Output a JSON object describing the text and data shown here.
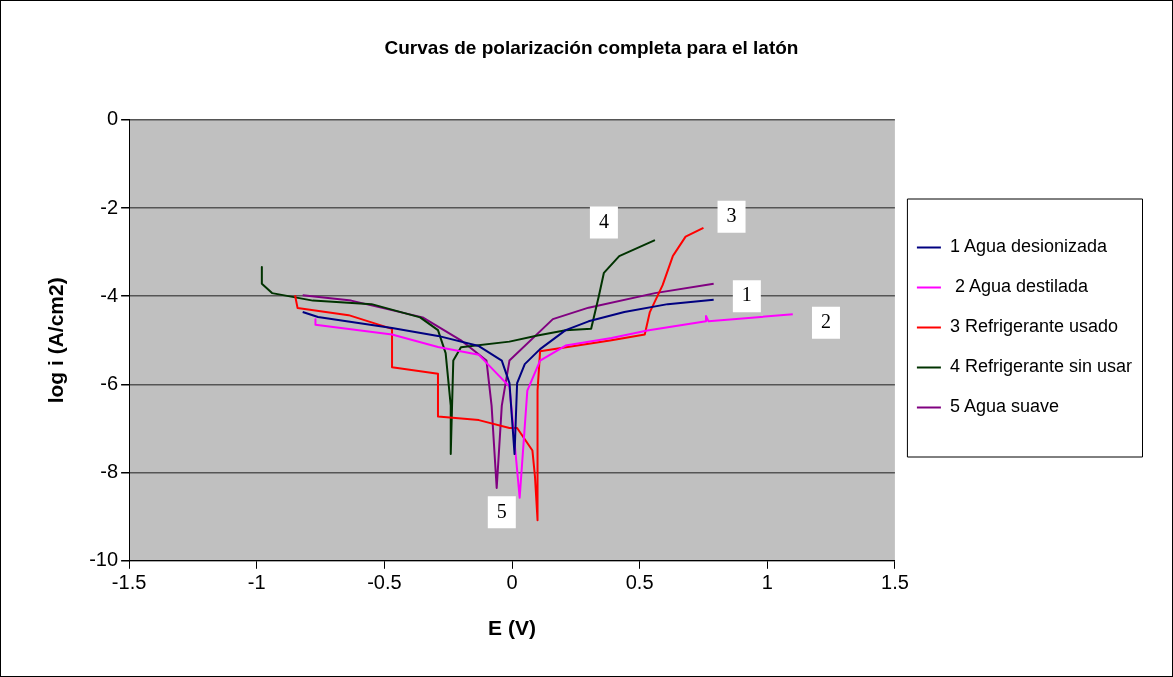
{
  "chart_data": {
    "type": "line",
    "title": "Curvas de polarización completa para el latón",
    "xlabel": "E (V)",
    "ylabel": "log i (A/cm2)",
    "xlim": [
      -1.5,
      1.5
    ],
    "xticks": [
      -1.5,
      -1,
      -0.5,
      0,
      0.5,
      1,
      1.5
    ],
    "ylim": [
      -10,
      0
    ],
    "yticks": [
      -10,
      -8,
      -6,
      -4,
      -2,
      0
    ],
    "grid": "y",
    "legend": "right",
    "marker": "none",
    "line_style": "solid",
    "series": [
      {
        "name": "1 Agua desionizada",
        "color": "#000080",
        "x": [
          -0.82,
          -0.76,
          -0.47,
          -0.29,
          -0.13,
          -0.04,
          -0.01,
          0.01,
          0.02,
          0.05,
          0.11,
          0.21,
          0.3,
          0.44,
          0.61,
          0.79
        ],
        "values": [
          -4.36,
          -4.47,
          -4.72,
          -4.9,
          -5.13,
          -5.46,
          -5.97,
          -7.58,
          -5.97,
          -5.54,
          -5.2,
          -4.77,
          -4.57,
          -4.36,
          -4.18,
          -4.08
        ]
      },
      {
        "name": " 2 Agua destilada",
        "color": "#ff00ff",
        "x": [
          -0.77,
          -0.77,
          -0.47,
          -0.29,
          -0.13,
          -0.01,
          0.03,
          0.06,
          0.11,
          0.21,
          0.39,
          0.53,
          0.76,
          0.76,
          0.77,
          1.1
        ],
        "values": [
          -4.52,
          -4.65,
          -4.87,
          -5.15,
          -5.33,
          -6.05,
          -8.57,
          -6.14,
          -5.46,
          -5.12,
          -4.95,
          -4.78,
          -4.57,
          -4.45,
          -4.57,
          -4.41
        ]
      },
      {
        "name": "3 Refrigerante usado",
        "color": "#ff0000",
        "x": [
          -0.85,
          -0.84,
          -0.64,
          -0.47,
          -0.47,
          -0.29,
          -0.29,
          -0.13,
          -0.01,
          0.02,
          0.08,
          0.09,
          0.1,
          0.1,
          0.11,
          0.39,
          0.52,
          0.54,
          0.59,
          0.63,
          0.68,
          0.75
        ],
        "values": [
          -3.98,
          -4.27,
          -4.43,
          -4.74,
          -5.61,
          -5.76,
          -6.73,
          -6.81,
          -6.99,
          -6.99,
          -7.5,
          -8.09,
          -9.08,
          -6.14,
          -5.25,
          -5.0,
          -4.87,
          -4.36,
          -3.75,
          -3.09,
          -2.65,
          -2.45
        ]
      },
      {
        "name": "4 Refrigerante sin usar",
        "color": "#003300",
        "x": [
          -0.98,
          -0.98,
          -0.94,
          -0.78,
          -0.55,
          -0.36,
          -0.29,
          -0.26,
          -0.24,
          -0.24,
          -0.23,
          -0.2,
          -0.01,
          0.1,
          0.21,
          0.31,
          0.34,
          0.36,
          0.42,
          0.56
        ],
        "values": [
          -3.34,
          -3.72,
          -3.93,
          -4.1,
          -4.18,
          -4.48,
          -4.77,
          -5.29,
          -6.48,
          -7.58,
          -5.46,
          -5.16,
          -5.03,
          -4.89,
          -4.77,
          -4.74,
          -4.0,
          -3.47,
          -3.09,
          -2.73
        ]
      },
      {
        "name": "5 Agua suave",
        "color": "#800080",
        "x": [
          -0.82,
          -0.63,
          -0.35,
          -0.2,
          -0.1,
          -0.08,
          -0.06,
          -0.04,
          -0.01,
          0.16,
          0.3,
          0.56,
          0.79
        ],
        "values": [
          -3.98,
          -4.1,
          -4.48,
          -5.0,
          -5.46,
          -6.48,
          -8.35,
          -6.48,
          -5.46,
          -4.52,
          -4.26,
          -3.93,
          -3.72
        ]
      }
    ],
    "annotations": [
      {
        "text": "4",
        "x": 0.36,
        "y": -2.33
      },
      {
        "text": "3",
        "x": 0.86,
        "y": -2.2
      },
      {
        "text": "1",
        "x": 0.92,
        "y": -4.0
      },
      {
        "text": "2",
        "x": 1.23,
        "y": -4.6
      },
      {
        "text": "5",
        "x": -0.04,
        "y": -8.9
      }
    ]
  }
}
